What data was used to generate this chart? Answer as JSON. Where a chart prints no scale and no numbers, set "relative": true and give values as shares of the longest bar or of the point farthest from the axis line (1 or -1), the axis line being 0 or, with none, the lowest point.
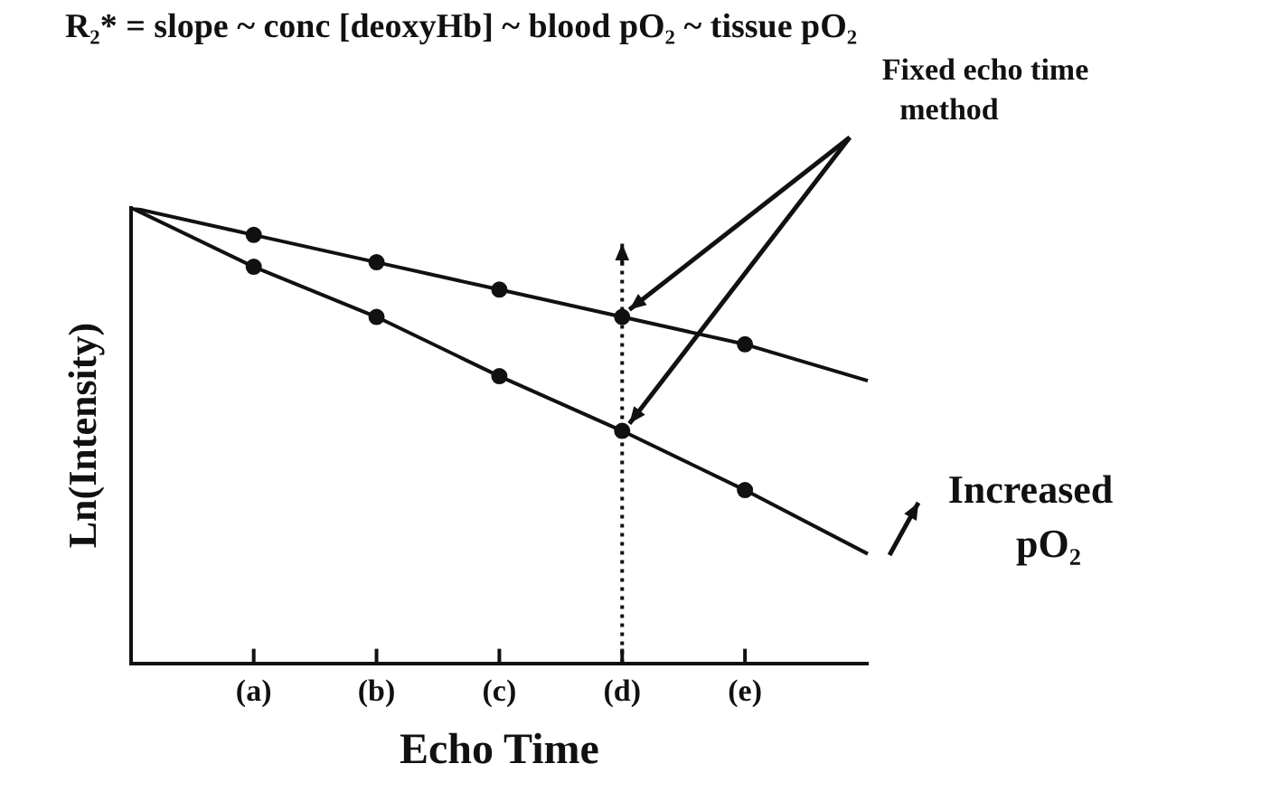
{
  "chart_data": {
    "type": "line",
    "relative": true,
    "title": "R₂* = slope ~ conc [deoxyHb] ~ blood pO₂ ~ tissue pO₂",
    "xlabel": "Echo Time",
    "ylabel": "Ln(Intensity)",
    "categories": [
      null,
      "(a)",
      "(b)",
      "(c)",
      "(d)",
      "(e)",
      null
    ],
    "series": [
      {
        "color": "#111111",
        "values": [
          1,
          0.94,
          0.88,
          0.82,
          0.76,
          0.7,
          0.62
        ]
      },
      {
        "color": "#111111",
        "values": [
          1,
          0.87,
          0.76,
          0.63,
          0.51,
          0.38,
          0.24
        ]
      }
    ],
    "ref_lines": [
      {
        "axis": "x",
        "value": "(d)",
        "line_style": "dotted",
        "color": "#111111"
      }
    ],
    "annotations": [
      "Fixed echo time method",
      "Increased pO₂"
    ],
    "marker": "circle",
    "line_style": "solid",
    "grid": false,
    "legend": false
  }
}
